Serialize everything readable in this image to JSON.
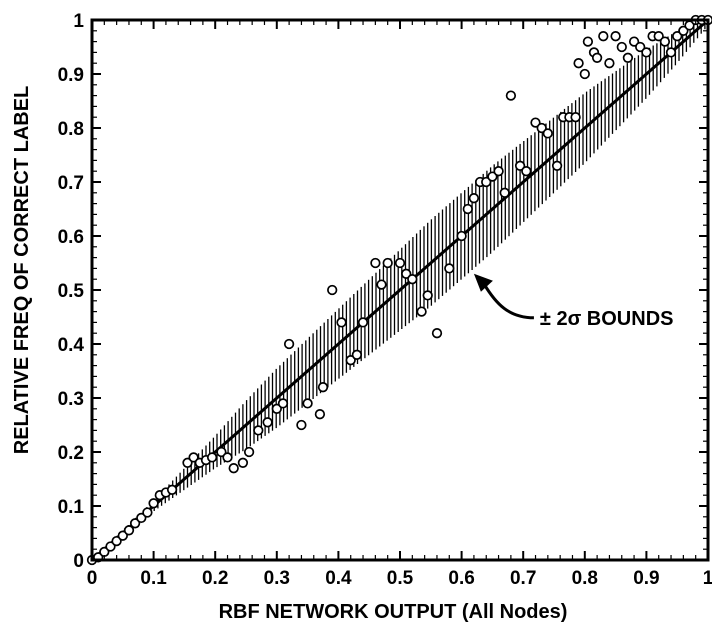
{
  "chart_data": {
    "type": "scatter",
    "title": "",
    "xlabel": "RBF NETWORK OUTPUT (All Nodes)",
    "ylabel": "RELATIVE FREQ OF CORRECT LABEL",
    "xlim": [
      0,
      1
    ],
    "ylim": [
      0,
      1
    ],
    "x_ticks": [
      "0",
      "0.1",
      "0.2",
      "0.3",
      "0.4",
      "0.5",
      "0.6",
      "0.7",
      "0.8",
      "0.9",
      "1"
    ],
    "y_ticks": [
      "0",
      "0.1",
      "0.2",
      "0.3",
      "0.4",
      "0.5",
      "0.6",
      "0.7",
      "0.8",
      "0.9",
      "1"
    ],
    "grid": false,
    "annotation": {
      "text": "± 2σ BOUNDS",
      "arrow_points_to": [
        0.62,
        0.53
      ]
    },
    "reference_line": {
      "name": "",
      "x": [
        0,
        1
      ],
      "y": [
        0,
        1
      ]
    },
    "bounds_band": {
      "x": [
        0.05,
        0.1,
        0.15,
        0.2,
        0.25,
        0.3,
        0.35,
        0.4,
        0.45,
        0.5,
        0.55,
        0.6,
        0.65,
        0.7,
        0.75,
        0.8,
        0.85,
        0.9,
        0.95,
        1.0
      ],
      "half_width": [
        0.005,
        0.01,
        0.02,
        0.03,
        0.045,
        0.055,
        0.06,
        0.065,
        0.07,
        0.075,
        0.08,
        0.08,
        0.08,
        0.075,
        0.07,
        0.065,
        0.055,
        0.045,
        0.03,
        0.01
      ]
    },
    "series": [
      {
        "type": "scatter",
        "points": [
          [
            0.0,
            0.0
          ],
          [
            0.01,
            0.005
          ],
          [
            0.02,
            0.015
          ],
          [
            0.03,
            0.025
          ],
          [
            0.04,
            0.035
          ],
          [
            0.05,
            0.045
          ],
          [
            0.06,
            0.055
          ],
          [
            0.07,
            0.068
          ],
          [
            0.08,
            0.078
          ],
          [
            0.09,
            0.088
          ],
          [
            0.1,
            0.105
          ],
          [
            0.11,
            0.12
          ],
          [
            0.12,
            0.125
          ],
          [
            0.13,
            0.13
          ],
          [
            0.155,
            0.18
          ],
          [
            0.165,
            0.19
          ],
          [
            0.175,
            0.18
          ],
          [
            0.185,
            0.185
          ],
          [
            0.195,
            0.19
          ],
          [
            0.21,
            0.2
          ],
          [
            0.22,
            0.19
          ],
          [
            0.23,
            0.17
          ],
          [
            0.245,
            0.18
          ],
          [
            0.255,
            0.2
          ],
          [
            0.27,
            0.24
          ],
          [
            0.285,
            0.255
          ],
          [
            0.3,
            0.28
          ],
          [
            0.31,
            0.29
          ],
          [
            0.32,
            0.4
          ],
          [
            0.34,
            0.25
          ],
          [
            0.35,
            0.29
          ],
          [
            0.37,
            0.27
          ],
          [
            0.375,
            0.32
          ],
          [
            0.39,
            0.5
          ],
          [
            0.405,
            0.44
          ],
          [
            0.42,
            0.37
          ],
          [
            0.43,
            0.38
          ],
          [
            0.44,
            0.44
          ],
          [
            0.46,
            0.55
          ],
          [
            0.47,
            0.51
          ],
          [
            0.48,
            0.55
          ],
          [
            0.5,
            0.55
          ],
          [
            0.51,
            0.53
          ],
          [
            0.52,
            0.52
          ],
          [
            0.535,
            0.46
          ],
          [
            0.545,
            0.49
          ],
          [
            0.56,
            0.42
          ],
          [
            0.58,
            0.54
          ],
          [
            0.6,
            0.6
          ],
          [
            0.61,
            0.65
          ],
          [
            0.62,
            0.67
          ],
          [
            0.63,
            0.7
          ],
          [
            0.64,
            0.7
          ],
          [
            0.65,
            0.71
          ],
          [
            0.66,
            0.72
          ],
          [
            0.67,
            0.68
          ],
          [
            0.68,
            0.86
          ],
          [
            0.695,
            0.73
          ],
          [
            0.705,
            0.72
          ],
          [
            0.72,
            0.81
          ],
          [
            0.73,
            0.8
          ],
          [
            0.74,
            0.79
          ],
          [
            0.755,
            0.73
          ],
          [
            0.765,
            0.82
          ],
          [
            0.775,
            0.82
          ],
          [
            0.785,
            0.82
          ],
          [
            0.79,
            0.92
          ],
          [
            0.8,
            0.9
          ],
          [
            0.805,
            0.96
          ],
          [
            0.815,
            0.94
          ],
          [
            0.82,
            0.93
          ],
          [
            0.83,
            0.97
          ],
          [
            0.84,
            0.92
          ],
          [
            0.85,
            0.97
          ],
          [
            0.86,
            0.95
          ],
          [
            0.87,
            0.93
          ],
          [
            0.88,
            0.96
          ],
          [
            0.89,
            0.95
          ],
          [
            0.9,
            0.94
          ],
          [
            0.91,
            0.97
          ],
          [
            0.92,
            0.97
          ],
          [
            0.93,
            0.96
          ],
          [
            0.94,
            0.94
          ],
          [
            0.95,
            0.97
          ],
          [
            0.96,
            0.98
          ],
          [
            0.97,
            0.99
          ],
          [
            0.98,
            1.0
          ],
          [
            0.99,
            1.0
          ],
          [
            1.0,
            1.0
          ]
        ]
      }
    ]
  }
}
